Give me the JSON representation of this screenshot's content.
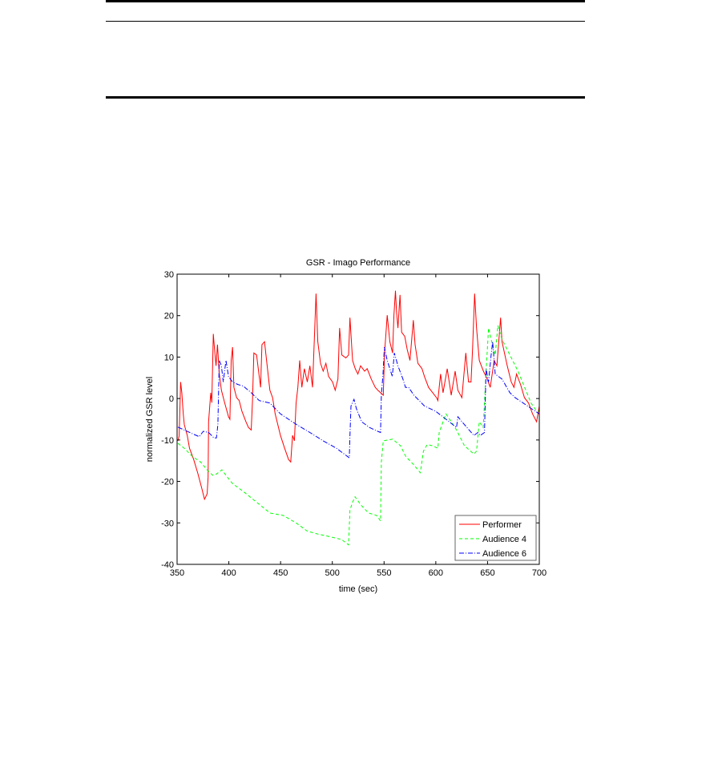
{
  "chart_data": {
    "type": "line",
    "title": "GSR -  Imago Performance",
    "xlabel": "time (sec)",
    "ylabel": "normalized GSR level",
    "xlim": [
      350,
      700
    ],
    "ylim": [
      -40,
      30
    ],
    "xticks": [
      350,
      400,
      450,
      500,
      550,
      600,
      650,
      700
    ],
    "yticks": [
      30,
      20,
      10,
      0,
      -10,
      -20,
      -30,
      -40
    ],
    "grid": false,
    "legend": "bottom-right",
    "series": [
      {
        "name": "Performer",
        "color": "#ff0000",
        "style": "solid",
        "x": [
          350.8,
          352,
          353.4,
          354.6,
          356,
          357,
          359.8,
          362,
          366,
          370,
          374,
          376.5,
          379,
          380,
          380.4,
          382.5,
          383.5,
          385,
          386,
          387.6,
          389,
          390.7,
          392.8,
          395.9,
          399.7,
          401,
          402.3,
          403.6,
          404.9,
          407.5,
          410,
          412.6,
          416.5,
          419,
          421.6,
          422.9,
          424.2,
          426.8,
          429.4,
          430.7,
          432,
          434.5,
          437,
          439.7,
          442.3,
          444.8,
          449.9,
          453.9,
          457.7,
          459.8,
          461.6,
          463.4,
          465,
          466.7,
          468.5,
          470.6,
          473,
          475.8,
          478.3,
          480.9,
          483,
          484.3,
          486,
          488.6,
          491.2,
          493.8,
          496.4,
          500.2,
          502.8,
          505.4,
          507,
          509.2,
          513.1,
          515.7,
          517,
          519.6,
          522.1,
          524.7,
          527.3,
          531.2,
          533.7,
          537.6,
          541.5,
          544,
          546.6,
          549.2,
          550.5,
          551.8,
          553,
          555.6,
          558.2,
          559.5,
          561,
          562,
          563.4,
          565.4,
          567,
          570,
          572.4,
          575,
          578.3,
          580,
          582.7,
          586.6,
          589,
          593,
          597,
          600.7,
          602,
          604.6,
          607,
          611,
          614.9,
          618.7,
          621.3,
          625.2,
          629,
          631.6,
          634,
          635.5,
          637.5,
          639.4,
          642,
          646,
          649.7,
          652.6,
          656.4,
          659,
          662.6,
          664,
          669,
          672.9,
          675.5,
          678,
          681.9,
          685.7,
          689.6,
          693.5,
          697.4,
          700
        ],
        "y": [
          -10.2,
          -9,
          4,
          1.4,
          -3.7,
          -6.3,
          -8.9,
          -12,
          -14.7,
          -18,
          -21.8,
          -24.3,
          -23,
          -19,
          -5.6,
          1.4,
          -1,
          15.6,
          12.4,
          7.9,
          13,
          6,
          2,
          -1,
          -4.4,
          -5,
          9.2,
          12.4,
          2.7,
          0.2,
          -0.5,
          -3,
          -5.6,
          -7,
          -7.6,
          -0.5,
          11,
          10.5,
          5.3,
          2.7,
          13,
          13.7,
          7.9,
          2,
          0.2,
          -3.7,
          -8.9,
          -12,
          -14.7,
          -15.3,
          -8.9,
          -10.2,
          -1.1,
          2.7,
          9.2,
          2.7,
          7.2,
          4,
          7.9,
          2.7,
          17,
          25.3,
          13.7,
          8.5,
          6.6,
          8.5,
          5.3,
          4,
          2,
          4.7,
          17,
          10.5,
          9.8,
          10.5,
          19.5,
          9.2,
          7.2,
          5.9,
          7.9,
          6.6,
          7.2,
          4.7,
          2.7,
          2,
          1.4,
          0.8,
          11,
          15.6,
          20.1,
          13.7,
          11,
          20.1,
          26,
          21,
          17,
          25,
          16,
          15,
          11.8,
          9.2,
          18.9,
          13,
          8.5,
          7.2,
          5.3,
          2.7,
          1.4,
          0.2,
          -0.5,
          5.9,
          1.4,
          7.2,
          0.8,
          6.6,
          2,
          0.2,
          11,
          4,
          4,
          11.8,
          25.3,
          17,
          9.2,
          6.6,
          4.7,
          2.7,
          9.2,
          7.9,
          19.5,
          13.7,
          7.9,
          4,
          2.7,
          5.9,
          3.4,
          0.2,
          -1.1,
          -3.7,
          -5.6,
          -1.8
        ]
      },
      {
        "name": "Audience 4",
        "color": "#00ff00",
        "style": "dashed",
        "x": [
          350.8,
          357,
          364.9,
          372.7,
          379,
          384.3,
          388,
          393.3,
          398.4,
          403.6,
          413.9,
          426.8,
          439.7,
          452.6,
          465.5,
          475.8,
          486,
          499,
          509,
          515.7,
          517,
          519.6,
          522,
          527.3,
          535,
          542.8,
          546.6,
          547.4,
          549.2,
          558.2,
          566,
          571,
          578.8,
          585,
          588,
          591.7,
          596.9,
          602,
          603.3,
          607,
          609.9,
          614.9,
          620,
          627.7,
          636.8,
          639.4,
          642,
          645.8,
          647,
          648.9,
          651,
          653.5,
          657.4,
          660,
          663.9,
          671.6,
          679.4,
          687,
          692,
          697.4,
          700
        ],
        "y": [
          -10.8,
          -12,
          -14,
          -15.3,
          -17.2,
          -18.5,
          -18.2,
          -17.2,
          -18.9,
          -20.5,
          -22.4,
          -25,
          -27.6,
          -28.2,
          -30.1,
          -32,
          -32.7,
          -33.4,
          -34,
          -35.3,
          -26.9,
          -25,
          -23.7,
          -25.6,
          -27.6,
          -28.2,
          -29.5,
          -15.3,
          -10.2,
          -9.8,
          -11.4,
          -14,
          -16,
          -17.9,
          -12.7,
          -11.1,
          -11.4,
          -12,
          -8.2,
          -5.6,
          -3.7,
          -5.6,
          -7.6,
          -11.4,
          -13.4,
          -12.7,
          -5.6,
          -7,
          -1.1,
          7.9,
          17,
          14.3,
          10.5,
          17.6,
          14.3,
          10.5,
          6.6,
          2,
          -1.1,
          -3,
          -3
        ]
      },
      {
        "name": "Audience 6",
        "color": "#0000ff",
        "style": "dashdot",
        "x": [
          350.8,
          357,
          364.9,
          371.4,
          375.3,
          380.4,
          385.6,
          388,
          389.4,
          390.7,
          392.8,
          394.6,
          397.2,
          399.7,
          403.6,
          408.8,
          413.9,
          421.6,
          429.4,
          439.7,
          449.9,
          465.5,
          478.3,
          491.2,
          504,
          516.4,
          517,
          518,
          521,
          523.2,
          528.3,
          536,
          543.8,
          546.6,
          547.4,
          549,
          550.3,
          553,
          558,
          559.9,
          563.4,
          568.2,
          570.7,
          573.7,
          578.8,
          589,
          599.5,
          609.9,
          620,
          621.3,
          627.7,
          636.8,
          640.6,
          643,
          647,
          648.6,
          651,
          653.5,
          654.9,
          657.4,
          663.9,
          671.6,
          676.7,
          684.5,
          692.2,
          700
        ],
        "y": [
          -6.9,
          -7.6,
          -8.5,
          -9.2,
          -7.9,
          -8.2,
          -9.5,
          -9.5,
          -6.3,
          9.2,
          7.9,
          4,
          9.2,
          5.3,
          4,
          3.4,
          3,
          1.4,
          -0.5,
          -1.1,
          -3.7,
          -6.3,
          -8.2,
          -10.2,
          -12,
          -14.3,
          -9,
          -1.8,
          -0.2,
          -2.4,
          -5.6,
          -7,
          -7.9,
          -8.2,
          0.8,
          6,
          12.4,
          9.2,
          5.3,
          11,
          7.9,
          4.7,
          2.7,
          2.7,
          0.8,
          -1.8,
          -3,
          -5,
          -7,
          -4.4,
          -6.3,
          -8.9,
          -8.2,
          -8.9,
          -8.2,
          7.2,
          4,
          10.5,
          13.7,
          5.9,
          4.7,
          1.4,
          0.2,
          -1.1,
          -2.4,
          -3.7
        ]
      }
    ]
  }
}
